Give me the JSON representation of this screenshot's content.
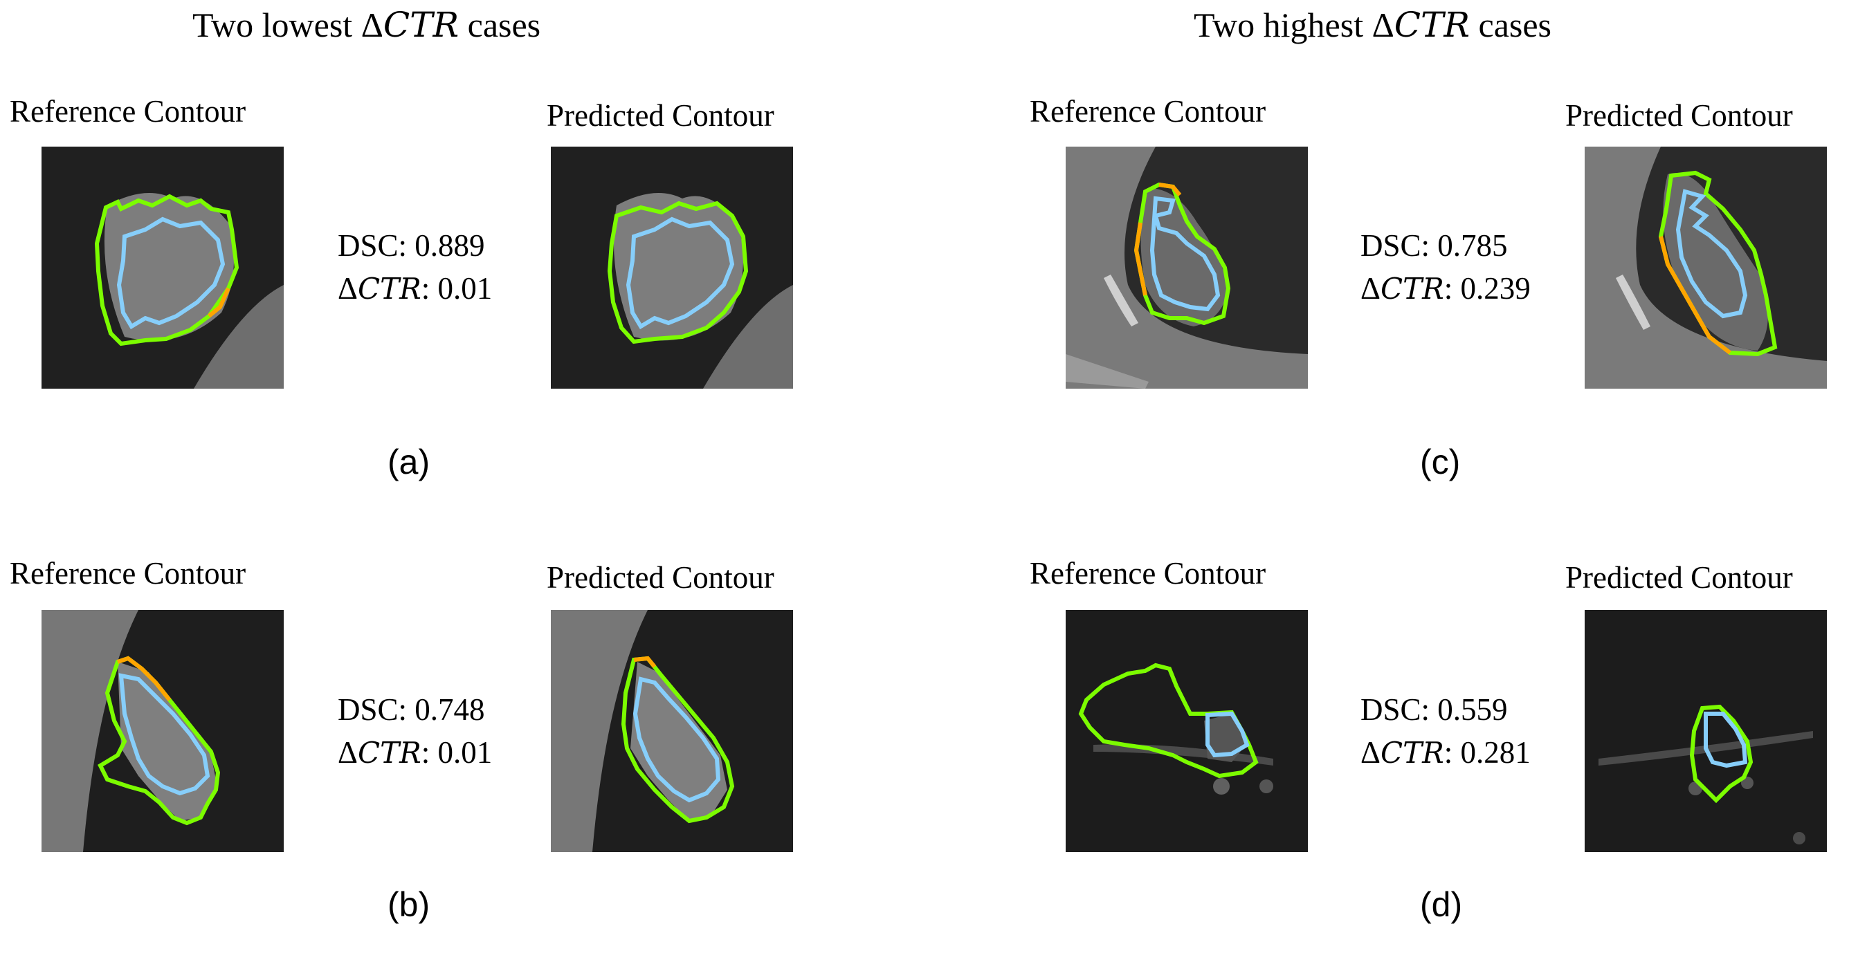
{
  "headings": {
    "lowest": {
      "before": "Two lowest ",
      "delta": "Δ",
      "var": "CTR",
      "after": " cases"
    },
    "highest": {
      "before": "Two highest ",
      "delta": "Δ",
      "var": "CTR",
      "after": " cases"
    }
  },
  "labels": {
    "reference": "Reference Contour",
    "predicted": "Predicted Contour"
  },
  "metric_names": {
    "dsc": "DSC:",
    "delta": "Δ",
    "ctr": "CTR",
    "sep": ":"
  },
  "panels": {
    "a": {
      "tag": "(a)",
      "dsc": "0.889",
      "dctr": "0.01"
    },
    "b": {
      "tag": "(b)",
      "dsc": "0.748",
      "dctr": "0.01"
    },
    "c": {
      "tag": "(c)",
      "dsc": "0.785",
      "dctr": "0.239"
    },
    "d": {
      "tag": "(d)",
      "dsc": "0.559",
      "dctr": "0.281"
    }
  },
  "colors": {
    "reference": "#7CFC00",
    "predicted": "#FFA500",
    "overlap": "#87CEFA",
    "ct_dark": "#1c1c1c",
    "ct_tissue": "#8a8a8a"
  }
}
